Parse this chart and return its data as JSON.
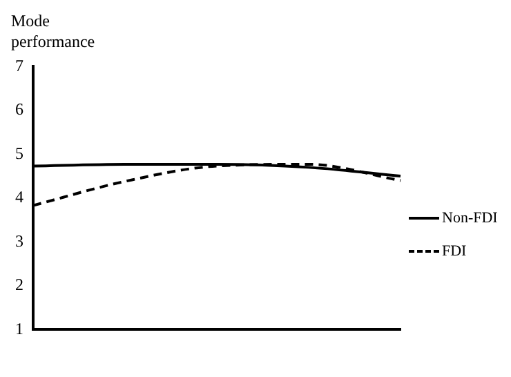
{
  "chart_data": {
    "type": "line",
    "ylabel": "Mode performance",
    "categories": [
      null,
      null,
      null,
      null,
      null
    ],
    "series": [
      {
        "name": "Non-FDI",
        "color": "#000000",
        "line_style": "solid",
        "values": [
          4.73,
          4.77,
          4.77,
          4.7,
          4.5
        ]
      },
      {
        "name": "FDI",
        "color": "#000000",
        "line_style": "dashed",
        "values": [
          3.83,
          4.38,
          4.73,
          4.77,
          4.4
        ]
      }
    ],
    "ylim": [
      1,
      7
    ],
    "yticks": [
      1,
      2,
      3,
      4,
      5,
      6,
      7
    ],
    "grid": false,
    "legend": "right",
    "marker": "none"
  }
}
